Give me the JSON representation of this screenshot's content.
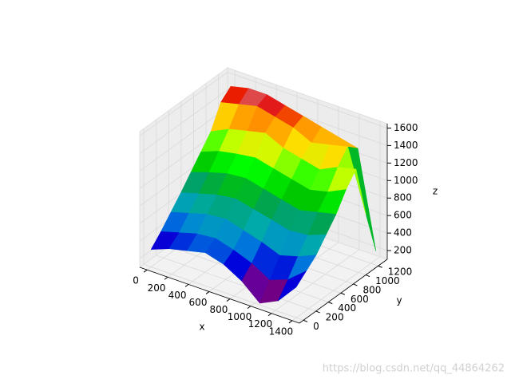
{
  "chart_data": {
    "type": "surface",
    "xlabel": "x",
    "ylabel": "y",
    "zlabel": "z",
    "x": [
      0,
      175,
      350,
      525,
      700,
      875,
      1050,
      1225,
      1400
    ],
    "y": [
      0,
      160,
      320,
      480,
      640,
      800,
      960,
      1120,
      1280
    ],
    "z": [
      [
        300,
        380,
        430,
        480,
        420,
        300,
        120,
        220,
        450
      ],
      [
        420,
        480,
        540,
        560,
        500,
        420,
        300,
        380,
        550
      ],
      [
        560,
        620,
        680,
        700,
        640,
        580,
        500,
        560,
        650
      ],
      [
        700,
        760,
        820,
        850,
        800,
        750,
        700,
        720,
        800
      ],
      [
        850,
        920,
        980,
        1000,
        950,
        900,
        850,
        900,
        950
      ],
      [
        1000,
        1080,
        1120,
        1150,
        1100,
        1050,
        1000,
        1050,
        1150
      ],
      [
        1150,
        1250,
        1300,
        1350,
        1250,
        1200,
        1150,
        1250,
        1300
      ],
      [
        1400,
        1450,
        1500,
        1450,
        1400,
        1300,
        1350,
        1400,
        700
      ],
      [
        1500,
        1550,
        1550,
        1500,
        1450,
        1400,
        1350,
        1300,
        200
      ]
    ],
    "xlim": [
      -70,
      1470
    ],
    "ylim": [
      -65,
      1345
    ],
    "zlim": [
      100,
      1650
    ],
    "xticks": [
      0,
      200,
      400,
      600,
      800,
      1000,
      1200,
      1400
    ],
    "yticks": [
      0,
      200,
      400,
      600,
      800,
      1000,
      1200
    ],
    "zticks": [
      200,
      400,
      600,
      800,
      1000,
      1200,
      1400,
      1600
    ],
    "grid": true,
    "watermark": "https://blog.csdn.net/qq_44864262"
  }
}
